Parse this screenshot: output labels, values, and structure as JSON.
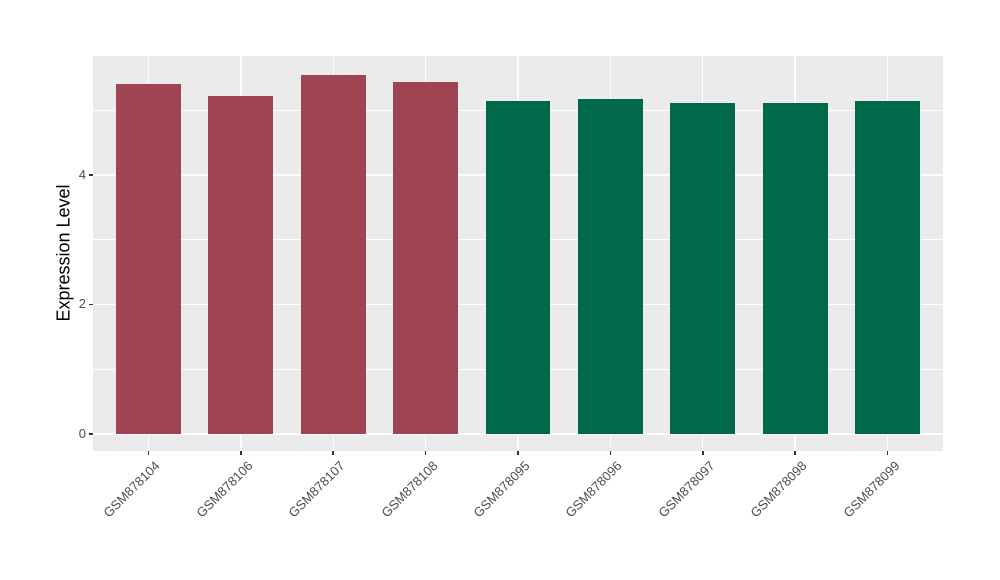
{
  "chart_data": {
    "type": "bar",
    "title": "",
    "xlabel": "",
    "ylabel": "Expression Level",
    "categories": [
      "GSM878104",
      "GSM878106",
      "GSM878107",
      "GSM878108",
      "GSM878095",
      "GSM878096",
      "GSM878097",
      "GSM878098",
      "GSM878099"
    ],
    "values": [
      5.4,
      5.22,
      5.54,
      5.43,
      5.14,
      5.17,
      5.11,
      5.11,
      5.15
    ],
    "groups": [
      "group1",
      "group1",
      "group1",
      "group1",
      "group2",
      "group2",
      "group2",
      "group2",
      "group2"
    ],
    "group_colors": {
      "group1": "#9E4452",
      "group2": "#00694B"
    },
    "yticks": [
      0,
      2,
      4
    ],
    "yminor": [
      1,
      3,
      5
    ],
    "ylim": [
      -0.263,
      5.838
    ],
    "x_pad": 0.6,
    "bar_rel_width": 0.7,
    "x_tick_angle": -45,
    "grid": true,
    "legend": "none",
    "colors": {
      "panel_bg": "#EBEBEB",
      "grid": "#FFFFFF",
      "tick_marks": "#333333",
      "axis_text": "#4D4D4D",
      "axis_title": "#000000",
      "background": "#FFFFFF"
    }
  }
}
